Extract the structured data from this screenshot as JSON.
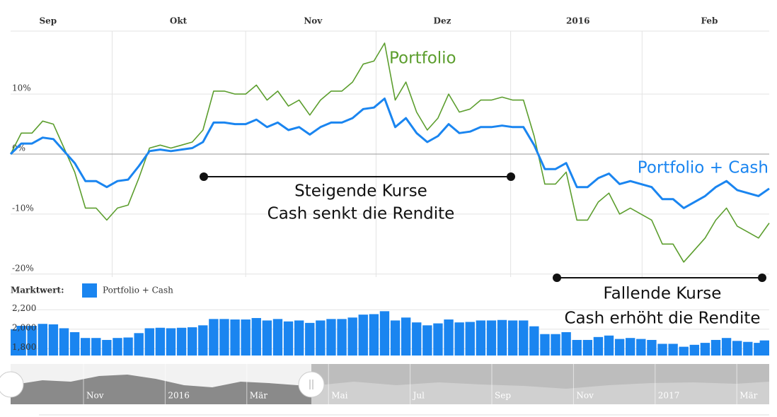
{
  "chart_data": [
    {
      "type": "line",
      "x": [
        0,
        1,
        2,
        3,
        4,
        5,
        6,
        7,
        8,
        9,
        10,
        11,
        12,
        13,
        14,
        15,
        16,
        17,
        18,
        19,
        20,
        21,
        22,
        23,
        24,
        25,
        26,
        27,
        28,
        29,
        30,
        31,
        32,
        33,
        34,
        35,
        36,
        37,
        38,
        39,
        40,
        41,
        42,
        43,
        44,
        45,
        46,
        47,
        48,
        49,
        50,
        51,
        52,
        53,
        54,
        55,
        56,
        57,
        58,
        59,
        60,
        61,
        62,
        63,
        64,
        65,
        66,
        67,
        68,
        69,
        70,
        71
      ],
      "xlim": [
        0,
        71
      ],
      "xticks": [
        {
          "value": 3.5,
          "label": "Sep"
        },
        {
          "value": 15.7,
          "label": "Okt"
        },
        {
          "value": 28.3,
          "label": "Nov"
        },
        {
          "value": 40.4,
          "label": "Dez"
        },
        {
          "value": 53.1,
          "label": "2016"
        },
        {
          "value": 65.4,
          "label": "Feb"
        }
      ],
      "xgrid": [
        9.5,
        22,
        34.2,
        46.8,
        59.1
      ],
      "ylim": [
        -20.5,
        20.5
      ],
      "yticks": [
        {
          "value": 10,
          "label": "10%"
        },
        {
          "value": 0,
          "label": "0%"
        },
        {
          "value": -10,
          "label": "-10%"
        },
        {
          "value": -20,
          "label": "-20%"
        }
      ],
      "grid": true,
      "series": [
        {
          "name": "Portfolio",
          "color": "#5c9e2e",
          "values": [
            0,
            3.5,
            3.5,
            5.5,
            5,
            1,
            -3,
            -9,
            -9,
            -11,
            -9,
            -8.5,
            -4,
            1,
            1.5,
            1,
            1.5,
            2,
            4,
            10.5,
            10.5,
            10,
            10,
            11.5,
            9,
            10.5,
            8,
            9,
            6.5,
            9,
            10.5,
            10.5,
            12,
            15,
            15.5,
            18.5,
            9,
            12,
            7,
            4,
            6,
            10,
            7,
            7.5,
            9,
            9,
            9.5,
            9,
            9,
            3,
            -5,
            -5,
            -3,
            -11,
            -11,
            -8,
            -6.5,
            -10,
            -9,
            -10,
            -11,
            -15,
            -15,
            -18,
            -16,
            -14,
            -11,
            -9,
            -12,
            -13,
            -14,
            -11.5
          ]
        },
        {
          "name": "Portfolio + Cash",
          "color": "#1a85f0",
          "values": [
            0,
            1.75,
            1.75,
            2.75,
            2.5,
            0.5,
            -1.5,
            -4.5,
            -4.5,
            -5.5,
            -4.5,
            -4.25,
            -2,
            0.5,
            0.75,
            0.5,
            0.75,
            1,
            2,
            5.25,
            5.25,
            5,
            5,
            5.75,
            4.5,
            5.25,
            4,
            4.5,
            3.25,
            4.5,
            5.25,
            5.25,
            6,
            7.5,
            7.75,
            9.25,
            4.5,
            6,
            3.5,
            2,
            3,
            5,
            3.5,
            3.75,
            4.5,
            4.5,
            4.75,
            4.5,
            4.5,
            1.5,
            -2.5,
            -2.5,
            -1.5,
            -5.5,
            -5.5,
            -4,
            -3.25,
            -5,
            -4.5,
            -5,
            -5.5,
            -7.5,
            -7.5,
            -9,
            -8,
            -7,
            -5.5,
            -4.5,
            -6,
            -6.5,
            -7,
            -5.75
          ]
        }
      ],
      "annotations": [
        "Steigende Kurse",
        "Cash senkt die Rendite",
        "Fallende Kurse",
        "Cash erhöht die Rendite"
      ]
    },
    {
      "type": "bar",
      "label": "Marktwert:",
      "ylim": [
        1730,
        2260
      ],
      "yticks": [
        {
          "value": 2200,
          "label": "2,200"
        },
        {
          "value": 2000,
          "label": "2,000"
        },
        {
          "value": 1800,
          "label": "1,800"
        }
      ],
      "grid": true,
      "series": [
        {
          "name": "Portfolio + Cash",
          "color": "#1a85f0",
          "values": [
            2000,
            2035,
            2035,
            2055,
            2050,
            2010,
            1970,
            1910,
            1910,
            1890,
            1910,
            1915,
            1960,
            2010,
            2015,
            2010,
            2015,
            2020,
            2040,
            2105,
            2105,
            2100,
            2100,
            2115,
            2090,
            2105,
            2080,
            2090,
            2065,
            2090,
            2105,
            2105,
            2120,
            2150,
            2155,
            2185,
            2090,
            2120,
            2070,
            2040,
            2060,
            2100,
            2070,
            2075,
            2090,
            2090,
            2095,
            2090,
            2090,
            2030,
            1950,
            1950,
            1970,
            1890,
            1890,
            1920,
            1935,
            1900,
            1910,
            1900,
            1890,
            1850,
            1850,
            1820,
            1840,
            1860,
            1890,
            1910,
            1880,
            1870,
            1860,
            1885
          ]
        }
      ]
    }
  ],
  "navigator": {
    "labels": [
      "Nov",
      "2016",
      "Mär",
      "Mai",
      "Jul",
      "Sep",
      "Nov",
      "2017",
      "Mär"
    ]
  }
}
